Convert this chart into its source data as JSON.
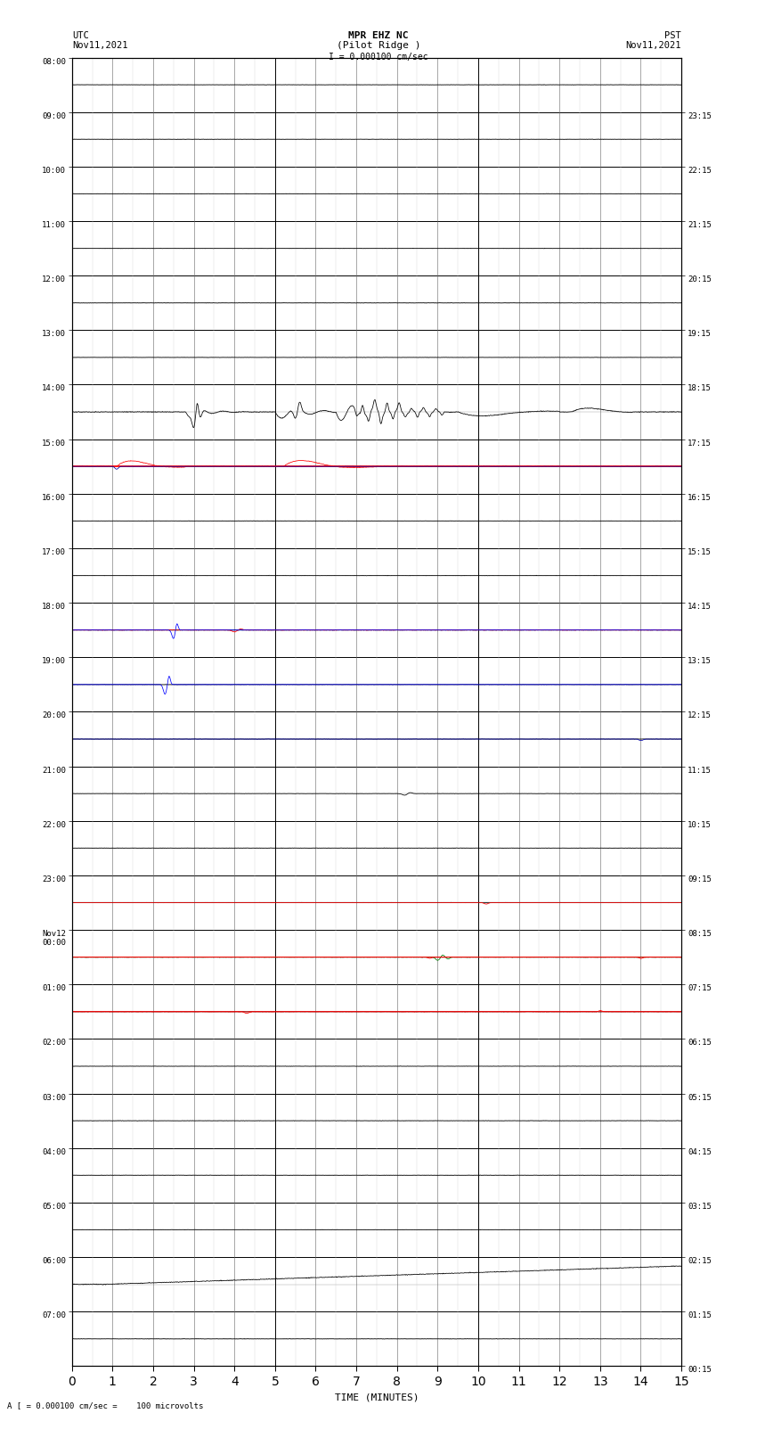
{
  "title_line1": "MPR EHZ NC",
  "title_line2": "(Pilot Ridge )",
  "title_line3": "I = 0.000100 cm/sec",
  "left_label_top": "UTC",
  "left_label_date": "Nov11,2021",
  "right_label_top": "PST",
  "right_label_date": "Nov11,2021",
  "bottom_label": "TIME (MINUTES)",
  "bottom_note": "A [ = 0.000100 cm/sec =    100 microvolts",
  "utc_labels": [
    "08:00",
    "09:00",
    "10:00",
    "11:00",
    "12:00",
    "13:00",
    "14:00",
    "15:00",
    "16:00",
    "17:00",
    "18:00",
    "19:00",
    "20:00",
    "21:00",
    "22:00",
    "23:00",
    "Nov12\n00:00",
    "01:00",
    "02:00",
    "03:00",
    "04:00",
    "05:00",
    "06:00",
    "07:00"
  ],
  "pst_labels": [
    "00:15",
    "01:15",
    "02:15",
    "03:15",
    "04:15",
    "05:15",
    "06:15",
    "07:15",
    "08:15",
    "09:15",
    "10:15",
    "11:15",
    "12:15",
    "13:15",
    "14:15",
    "15:15",
    "16:15",
    "17:15",
    "18:15",
    "19:15",
    "20:15",
    "21:15",
    "22:15",
    "23:15"
  ],
  "n_rows": 24,
  "minutes": 15,
  "bg_color": "#ffffff",
  "trace_color": "#000000",
  "red_line_row": 7,
  "red_line_color": "#ff0000",
  "grid_major_color": "#000000",
  "grid_minor_color": "#888888"
}
